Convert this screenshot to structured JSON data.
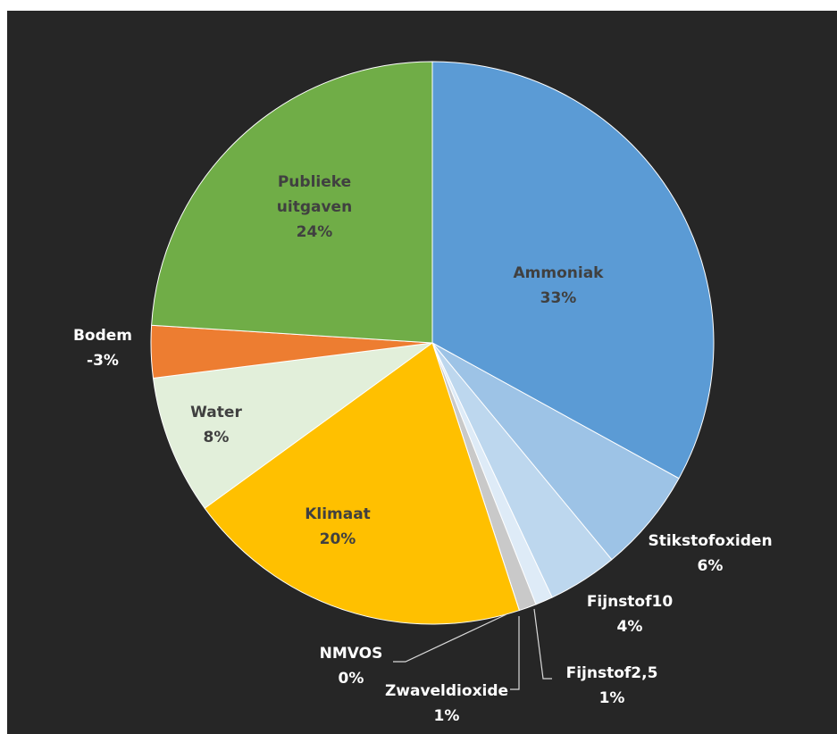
{
  "chart_data": {
    "type": "pie",
    "categories": [
      "Ammoniak",
      "Stikstofoxiden",
      "Fijnstof10",
      "Fijnstof2,5",
      "Zwaveldioxide",
      "NMVOS",
      "Klimaat",
      "Water",
      "Bodem",
      "Publieke uitgaven"
    ],
    "values": [
      33,
      6,
      4,
      1,
      1,
      0,
      20,
      8,
      -3,
      24
    ],
    "value_labels": [
      "33%",
      "6%",
      "4%",
      "1%",
      "1%",
      "0%",
      "20%",
      "8%",
      "-3%",
      "24%"
    ],
    "colors": [
      "#5b9bd5",
      "#9dc3e6",
      "#bdd7ee",
      "#deebf7",
      "#c9c9c9",
      "#70ad47",
      "#ffc000",
      "#e2efda",
      "#ed7d31",
      "#70ad47"
    ]
  }
}
